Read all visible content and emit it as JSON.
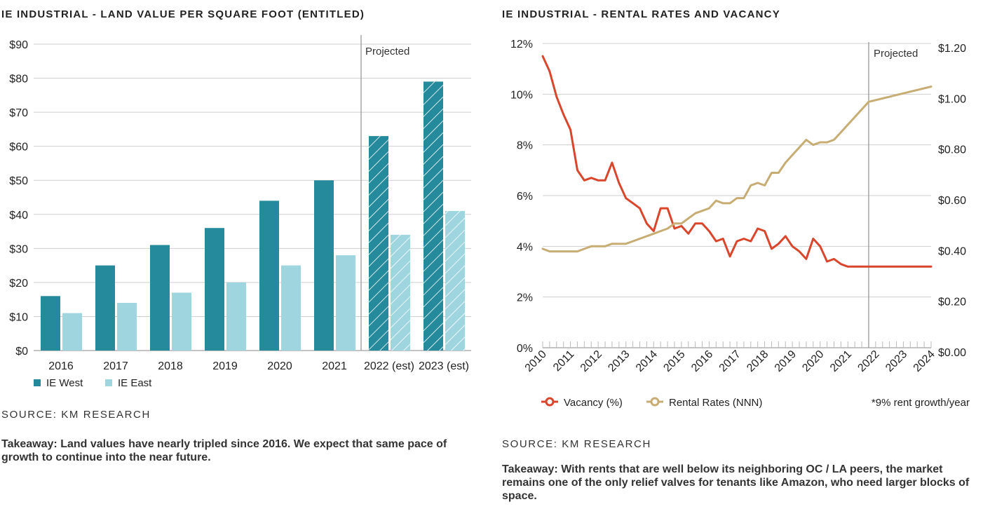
{
  "left": {
    "title": "IE INDUSTRIAL - LAND VALUE PER SQUARE FOOT (ENTITLED)",
    "source": "SOURCE: KM RESEARCH",
    "takeaway": "Takeaway: Land values have nearly tripled since 2016. We expect that same pace of growth to continue into the near future.",
    "projected_label": "Projected"
  },
  "right": {
    "title": "IE INDUSTRIAL - RENTAL RATES AND VACANCY",
    "source": "SOURCE: KM RESEARCH",
    "takeaway": "Takeaway: With rents that are well below its neighboring OC / LA peers, the market remains one of the only relief valves for tenants like Amazon, who need larger blocks of space.",
    "projected_label": "Projected",
    "footnote": "*9% rent growth/year"
  },
  "chart_data": [
    {
      "type": "bar",
      "title": "IE INDUSTRIAL - LAND VALUE PER SQUARE FOOT (ENTITLED)",
      "categories": [
        "2016",
        "2017",
        "2018",
        "2019",
        "2020",
        "2021",
        "2022 (est)",
        "2023 (est)"
      ],
      "series": [
        {
          "name": "IE West",
          "color": "#258a9b",
          "values": [
            16,
            25,
            31,
            36,
            44,
            50,
            63,
            79
          ]
        },
        {
          "name": "IE East",
          "color": "#9fd5df",
          "values": [
            11,
            14,
            17,
            20,
            25,
            28,
            34,
            41
          ]
        }
      ],
      "ylim": [
        0,
        90
      ],
      "yticks": [
        0,
        10,
        20,
        30,
        40,
        50,
        60,
        70,
        80,
        90
      ],
      "ytick_labels": [
        "$0",
        "$10",
        "$20",
        "$30",
        "$40",
        "$50",
        "$60",
        "$70",
        "$80",
        "$90"
      ],
      "projected_from_index": 6,
      "grid": true,
      "legend": "bottom-left"
    },
    {
      "type": "line",
      "title": "IE INDUSTRIAL - RENTAL RATES AND VACANCY",
      "x_range": [
        2010,
        2024
      ],
      "x_tick_labels": [
        "2010",
        "2011",
        "2012",
        "2013",
        "2014",
        "2015",
        "2016",
        "2017",
        "2018",
        "2019",
        "2020",
        "2021",
        "2022",
        "2023",
        "2024"
      ],
      "projected_from": 2021.75,
      "y_left": {
        "range": [
          0,
          12
        ],
        "ticks": [
          0,
          2,
          4,
          6,
          8,
          10,
          12
        ],
        "tick_labels": [
          "0%",
          "2%",
          "4%",
          "6%",
          "8%",
          "10%",
          "12%"
        ]
      },
      "y_right": {
        "range": [
          0,
          1.2
        ],
        "ticks": [
          0,
          0.2,
          0.4,
          0.6,
          0.8,
          1.0,
          1.2
        ],
        "tick_labels": [
          "$0.00",
          "$0.20",
          "$0.40",
          "$0.60",
          "$0.80",
          "$1.00",
          "$1.20"
        ]
      },
      "series": [
        {
          "name": "Vacancy (%)",
          "axis": "left",
          "color": "#d9462b",
          "x": [
            2010,
            2010.25,
            2010.5,
            2010.75,
            2011,
            2011.25,
            2011.5,
            2011.75,
            2012,
            2012.25,
            2012.5,
            2012.75,
            2013,
            2013.25,
            2013.5,
            2013.75,
            2014,
            2014.25,
            2014.5,
            2014.75,
            2015,
            2015.25,
            2015.5,
            2015.75,
            2016,
            2016.25,
            2016.5,
            2016.75,
            2017,
            2017.25,
            2017.5,
            2017.75,
            2018,
            2018.25,
            2018.5,
            2018.75,
            2019,
            2019.25,
            2019.5,
            2019.75,
            2020,
            2020.25,
            2020.5,
            2020.75,
            2021,
            2021.25,
            2021.5,
            2021.75,
            2022,
            2022.25,
            2022.5,
            2022.75,
            2023,
            2023.25,
            2023.5,
            2023.75,
            2024
          ],
          "values": [
            11.5,
            10.9,
            9.9,
            9.2,
            8.6,
            7.0,
            6.6,
            6.7,
            6.6,
            6.6,
            7.3,
            6.5,
            5.9,
            5.7,
            5.5,
            4.9,
            4.6,
            5.5,
            5.5,
            4.7,
            4.8,
            4.5,
            4.9,
            4.9,
            4.6,
            4.2,
            4.3,
            3.6,
            4.2,
            4.3,
            4.2,
            4.7,
            4.6,
            3.9,
            4.1,
            4.4,
            4.0,
            3.8,
            3.5,
            4.3,
            4.0,
            3.4,
            3.5,
            3.3,
            3.2,
            3.2,
            3.2,
            3.2,
            3.2,
            3.2,
            3.2,
            3.2,
            3.2,
            3.2,
            3.2,
            3.2,
            3.2
          ]
        },
        {
          "name": "Rental Rates (NNN)",
          "axis": "right",
          "color": "#c7ad74",
          "x": [
            2010,
            2010.25,
            2010.5,
            2010.75,
            2011,
            2011.25,
            2011.5,
            2011.75,
            2012,
            2012.25,
            2012.5,
            2012.75,
            2013,
            2013.25,
            2013.5,
            2013.75,
            2014,
            2014.25,
            2014.5,
            2014.75,
            2015,
            2015.25,
            2015.5,
            2015.75,
            2016,
            2016.25,
            2016.5,
            2016.75,
            2017,
            2017.25,
            2017.5,
            2017.75,
            2018,
            2018.25,
            2018.5,
            2018.75,
            2019,
            2019.25,
            2019.5,
            2019.75,
            2020,
            2020.25,
            2020.5,
            2020.75,
            2021,
            2021.25,
            2021.5,
            2021.75,
            2024
          ],
          "values": [
            0.39,
            0.38,
            0.38,
            0.38,
            0.38,
            0.38,
            0.39,
            0.4,
            0.4,
            0.4,
            0.41,
            0.41,
            0.41,
            0.42,
            0.43,
            0.44,
            0.45,
            0.46,
            0.47,
            0.49,
            0.49,
            0.51,
            0.53,
            0.54,
            0.55,
            0.58,
            0.57,
            0.57,
            0.59,
            0.59,
            0.64,
            0.65,
            0.64,
            0.69,
            0.69,
            0.73,
            0.76,
            0.79,
            0.82,
            0.8,
            0.81,
            0.81,
            0.82,
            0.85,
            0.88,
            0.91,
            0.94,
            0.97,
            1.03
          ]
        }
      ],
      "legend": "bottom"
    }
  ]
}
